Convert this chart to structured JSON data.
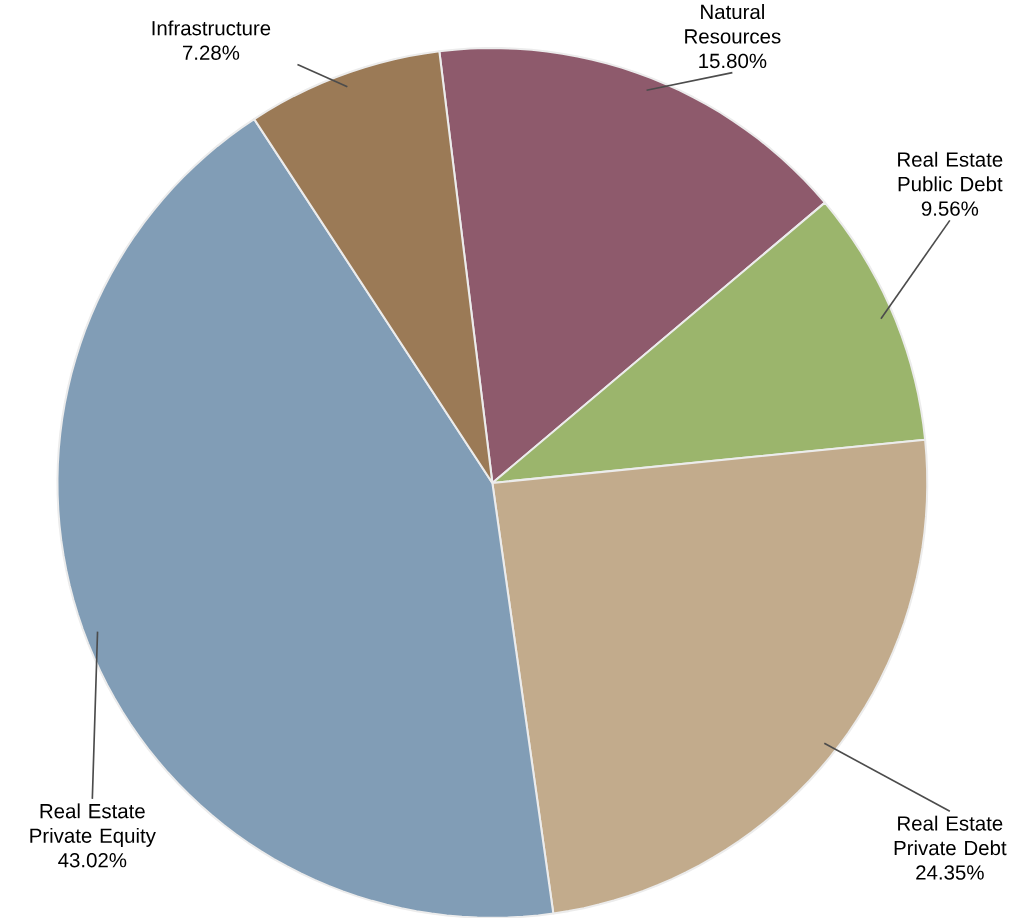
{
  "chart_data": {
    "type": "pie",
    "categories": [
      "Natural Resources",
      "Real Estate Public Debt",
      "Real Estate Private Debt",
      "Real Estate Private Equity",
      "Infrastructure"
    ],
    "values": [
      15.8,
      9.56,
      24.35,
      43.02,
      7.28
    ],
    "value_labels": [
      "15.80%",
      "9.56%",
      "24.35%",
      "43.02%",
      "7.28%"
    ],
    "colors": [
      "#8e5a6c",
      "#9bb56c",
      "#c2ab8c",
      "#819db6",
      "#9b7a56"
    ]
  }
}
